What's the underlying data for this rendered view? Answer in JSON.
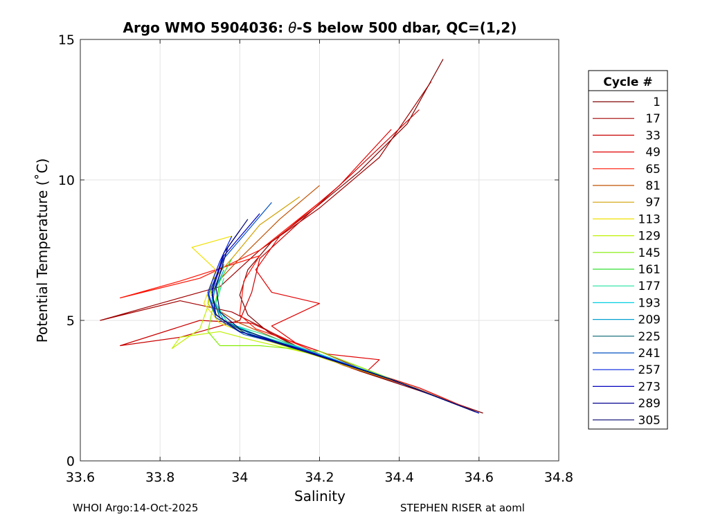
{
  "chart_data": {
    "type": "line",
    "title_prefix": "Argo WMO 5904036: ",
    "title_theta": "θ",
    "title_suffix": "-S below 500 dbar,  QC=(1,2)",
    "xlabel": "Salinity",
    "ylabel": "Potential Temperature (˚C)",
    "xlim": [
      33.6,
      34.8
    ],
    "ylim": [
      0,
      15
    ],
    "xticks": [
      33.6,
      33.8,
      34,
      34.2,
      34.4,
      34.6,
      34.8
    ],
    "xtick_labels": [
      "33.6",
      "33.8",
      "34",
      "34.2",
      "34.4",
      "34.6",
      "34.8"
    ],
    "yticks": [
      0,
      5,
      10,
      15
    ],
    "ytick_labels": [
      "0",
      "5",
      "10",
      "15"
    ],
    "grid": true,
    "legend_title": "Cycle #",
    "legend_position": "right",
    "series": [
      {
        "name": "1",
        "color": "#800000",
        "points": [
          [
            34.61,
            1.7
          ],
          [
            34.45,
            2.5
          ],
          [
            34.3,
            3.2
          ],
          [
            34.15,
            4.0
          ],
          [
            34.07,
            4.6
          ],
          [
            34.02,
            5.2
          ],
          [
            34.0,
            5.9
          ],
          [
            34.02,
            6.8
          ],
          [
            34.08,
            7.8
          ],
          [
            34.18,
            8.9
          ],
          [
            34.3,
            10.3
          ],
          [
            34.42,
            12.0
          ],
          [
            34.51,
            14.3
          ]
        ]
      },
      {
        "name": "17",
        "color": "#a00000",
        "points": [
          [
            34.6,
            1.7
          ],
          [
            34.44,
            2.6
          ],
          [
            34.28,
            3.3
          ],
          [
            34.14,
            4.1
          ],
          [
            34.05,
            4.8
          ],
          [
            33.98,
            5.3
          ],
          [
            33.85,
            5.7
          ],
          [
            33.65,
            5.0
          ],
          [
            33.8,
            5.6
          ],
          [
            33.95,
            6.2
          ],
          [
            34.05,
            7.5
          ],
          [
            34.2,
            9.0
          ],
          [
            34.35,
            10.8
          ],
          [
            34.48,
            13.5
          ]
        ]
      },
      {
        "name": "33",
        "color": "#c80000",
        "points": [
          [
            34.6,
            1.7
          ],
          [
            34.42,
            2.7
          ],
          [
            34.3,
            3.3
          ],
          [
            34.2,
            3.9
          ],
          [
            34.12,
            4.3
          ],
          [
            34.03,
            4.9
          ],
          [
            33.9,
            5.0
          ],
          [
            33.7,
            4.1
          ],
          [
            33.85,
            4.4
          ],
          [
            34.0,
            5.0
          ],
          [
            34.03,
            6.0
          ],
          [
            34.05,
            7.2
          ],
          [
            34.15,
            8.5
          ],
          [
            34.28,
            10.2
          ],
          [
            34.45,
            12.5
          ]
        ]
      },
      {
        "name": "49",
        "color": "#e00000",
        "points": [
          [
            34.6,
            1.7
          ],
          [
            34.45,
            2.6
          ],
          [
            34.32,
            3.2
          ],
          [
            34.35,
            3.6
          ],
          [
            34.22,
            3.8
          ],
          [
            34.14,
            4.2
          ],
          [
            34.08,
            4.8
          ],
          [
            34.2,
            5.6
          ],
          [
            34.08,
            6.0
          ],
          [
            34.04,
            6.8
          ],
          [
            34.1,
            8.0
          ],
          [
            34.25,
            9.8
          ],
          [
            34.38,
            11.8
          ]
        ]
      },
      {
        "name": "65",
        "color": "#ff1000",
        "points": [
          [
            34.6,
            1.7
          ],
          [
            34.4,
            2.8
          ],
          [
            34.25,
            3.5
          ],
          [
            34.12,
            4.3
          ],
          [
            34.04,
            4.7
          ],
          [
            34.0,
            5.2
          ],
          [
            34.01,
            6.4
          ],
          [
            34.05,
            7.3
          ],
          [
            33.85,
            6.4
          ],
          [
            33.7,
            5.8
          ],
          [
            33.9,
            6.5
          ],
          [
            34.05,
            7.5
          ],
          [
            34.2,
            9.2
          ]
        ]
      },
      {
        "name": "81",
        "color": "#c05000",
        "points": [
          [
            34.6,
            1.7
          ],
          [
            34.42,
            2.7
          ],
          [
            34.26,
            3.4
          ],
          [
            34.1,
            4.3
          ],
          [
            34.0,
            4.9
          ],
          [
            33.93,
            5.5
          ],
          [
            33.94,
            6.3
          ],
          [
            34.0,
            7.2
          ],
          [
            34.1,
            8.6
          ],
          [
            34.2,
            9.8
          ]
        ]
      },
      {
        "name": "97",
        "color": "#d0a000",
        "points": [
          [
            34.6,
            1.7
          ],
          [
            34.4,
            2.8
          ],
          [
            34.22,
            3.6
          ],
          [
            34.06,
            4.4
          ],
          [
            33.96,
            4.9
          ],
          [
            33.92,
            5.6
          ],
          [
            33.93,
            6.4
          ],
          [
            33.98,
            7.2
          ],
          [
            34.05,
            8.4
          ],
          [
            34.15,
            9.4
          ]
        ]
      },
      {
        "name": "113",
        "color": "#f0e000",
        "points": [
          [
            34.6,
            1.7
          ],
          [
            34.4,
            2.8
          ],
          [
            34.2,
            3.7
          ],
          [
            34.04,
            4.4
          ],
          [
            33.95,
            4.9
          ],
          [
            33.91,
            5.6
          ],
          [
            33.94,
            6.8
          ],
          [
            33.88,
            7.6
          ],
          [
            33.98,
            8.0
          ]
        ]
      },
      {
        "name": "129",
        "color": "#c0f000",
        "points": [
          [
            34.6,
            1.7
          ],
          [
            34.4,
            2.8
          ],
          [
            34.18,
            3.8
          ],
          [
            34.03,
            4.3
          ],
          [
            33.95,
            4.6
          ],
          [
            33.85,
            4.4
          ],
          [
            33.83,
            4.0
          ],
          [
            33.9,
            4.7
          ],
          [
            33.92,
            5.5
          ],
          [
            33.93,
            6.3
          ]
        ]
      },
      {
        "name": "145",
        "color": "#80ee00",
        "points": [
          [
            34.6,
            1.7
          ],
          [
            34.4,
            2.8
          ],
          [
            34.2,
            3.9
          ],
          [
            34.05,
            4.1
          ],
          [
            33.95,
            4.1
          ],
          [
            33.92,
            4.6
          ],
          [
            33.93,
            5.3
          ],
          [
            33.95,
            6.2
          ]
        ]
      },
      {
        "name": "161",
        "color": "#30e030",
        "points": [
          [
            34.6,
            1.7
          ],
          [
            34.38,
            2.9
          ],
          [
            34.2,
            3.8
          ],
          [
            34.06,
            4.4
          ],
          [
            33.97,
            4.9
          ],
          [
            33.94,
            5.6
          ],
          [
            33.95,
            6.4
          ],
          [
            33.98,
            7.2
          ]
        ]
      },
      {
        "name": "177",
        "color": "#20e0a0",
        "points": [
          [
            34.6,
            1.7
          ],
          [
            34.38,
            2.9
          ],
          [
            34.2,
            3.8
          ],
          [
            34.06,
            4.5
          ],
          [
            33.97,
            4.9
          ],
          [
            33.94,
            5.6
          ],
          [
            33.96,
            6.5
          ]
        ]
      },
      {
        "name": "193",
        "color": "#00d0e0",
        "points": [
          [
            34.6,
            1.7
          ],
          [
            34.38,
            2.9
          ],
          [
            34.18,
            3.9
          ],
          [
            34.04,
            4.5
          ],
          [
            33.96,
            5.0
          ],
          [
            33.93,
            5.7
          ],
          [
            33.95,
            6.6
          ]
        ]
      },
      {
        "name": "209",
        "color": "#00a0d0",
        "points": [
          [
            34.6,
            1.7
          ],
          [
            34.38,
            2.9
          ],
          [
            34.17,
            3.9
          ],
          [
            34.03,
            4.5
          ],
          [
            33.96,
            5.0
          ],
          [
            33.93,
            5.8
          ],
          [
            33.96,
            6.8
          ]
        ]
      },
      {
        "name": "225",
        "color": "#006070",
        "points": [
          [
            34.6,
            1.7
          ],
          [
            34.38,
            2.9
          ],
          [
            34.16,
            3.9
          ],
          [
            34.02,
            4.5
          ],
          [
            33.95,
            5.1
          ],
          [
            33.93,
            5.9
          ],
          [
            33.96,
            7.0
          ]
        ]
      },
      {
        "name": "241",
        "color": "#0050c0",
        "points": [
          [
            34.6,
            1.7
          ],
          [
            34.38,
            2.9
          ],
          [
            34.15,
            4.0
          ],
          [
            34.01,
            4.5
          ],
          [
            33.94,
            5.1
          ],
          [
            33.92,
            5.9
          ],
          [
            33.96,
            7.2
          ],
          [
            34.02,
            8.2
          ],
          [
            34.08,
            9.2
          ]
        ]
      },
      {
        "name": "257",
        "color": "#0020e0",
        "points": [
          [
            34.6,
            1.7
          ],
          [
            34.38,
            2.9
          ],
          [
            34.15,
            4.0
          ],
          [
            34.0,
            4.6
          ],
          [
            33.94,
            5.2
          ],
          [
            33.92,
            6.0
          ],
          [
            33.95,
            7.1
          ],
          [
            33.98,
            8.0
          ]
        ]
      },
      {
        "name": "273",
        "color": "#0000c0",
        "points": [
          [
            34.6,
            1.7
          ],
          [
            34.38,
            2.9
          ],
          [
            34.15,
            4.0
          ],
          [
            34.0,
            4.6
          ],
          [
            33.94,
            5.2
          ],
          [
            33.93,
            6.0
          ],
          [
            33.96,
            7.3
          ],
          [
            34.05,
            8.8
          ]
        ]
      },
      {
        "name": "289",
        "color": "#000090",
        "points": [
          [
            34.59,
            1.75
          ],
          [
            34.38,
            2.9
          ],
          [
            34.14,
            4.0
          ],
          [
            34.0,
            4.6
          ],
          [
            33.94,
            5.2
          ],
          [
            33.93,
            6.1
          ],
          [
            33.96,
            7.4
          ],
          [
            34.0,
            8.2
          ]
        ]
      },
      {
        "name": "305",
        "color": "#000070",
        "points": [
          [
            34.59,
            1.75
          ],
          [
            34.38,
            2.9
          ],
          [
            34.14,
            4.0
          ],
          [
            34.0,
            4.7
          ],
          [
            33.95,
            5.3
          ],
          [
            33.94,
            6.2
          ],
          [
            33.97,
            7.6
          ],
          [
            34.02,
            8.6
          ]
        ]
      }
    ]
  },
  "footer": {
    "left": "WHOI Argo:14-Oct-2025",
    "right": "STEPHEN RISER at aoml"
  }
}
